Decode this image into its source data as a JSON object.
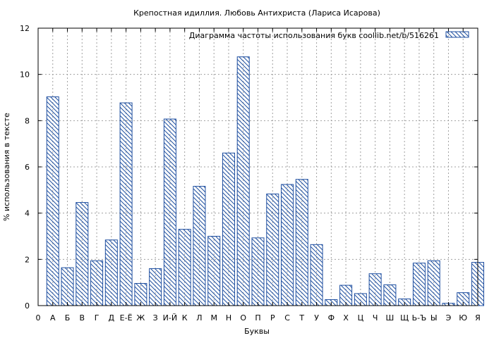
{
  "chart_data": {
    "type": "bar",
    "title": "Крепостная идиллия. Любовь Антихриста (Лариса Исарова)",
    "xlabel": "Буквы",
    "ylabel": "% использования в тексте",
    "ylim": [
      0,
      12
    ],
    "yticks": [
      "0",
      "2",
      "4",
      "6",
      "8",
      "10",
      "12"
    ],
    "x_axis_labels": [
      "0",
      "А",
      "Б",
      "В",
      "Г",
      "Д",
      "Е-Ё",
      "Ж",
      "З",
      "И-Й",
      "К",
      "Л",
      "М",
      "Н",
      "О",
      "П",
      "Р",
      "С",
      "Т",
      "У",
      "Ф",
      "Х",
      "Ц",
      "Ч",
      "Ш",
      "Щ",
      "Ь-Ъ",
      "Ы",
      "Э",
      "Ю",
      "Я"
    ],
    "grid": true,
    "legend_position": "top-right",
    "bar_pattern": "diagonal-hatch",
    "bar_color": "#1f4fa0",
    "series": [
      {
        "name": "Диаграмма частоты использования букв  coollib.net/b/516261",
        "categories": [
          "А",
          "Б",
          "В",
          "Г",
          "Д",
          "Е-Ё",
          "Ж",
          "З",
          "И-Й",
          "К",
          "Л",
          "М",
          "Н",
          "О",
          "П",
          "Р",
          "С",
          "Т",
          "У",
          "Ф",
          "Х",
          "Ц",
          "Ч",
          "Ш",
          "Щ",
          "Ь-Ъ",
          "Ы",
          "Э",
          "Ю",
          "Я"
        ],
        "values": [
          9.03,
          1.64,
          4.46,
          1.94,
          2.84,
          8.77,
          0.96,
          1.6,
          8.07,
          3.3,
          5.16,
          3.0,
          6.6,
          10.76,
          2.93,
          4.83,
          5.24,
          5.46,
          2.64,
          0.26,
          0.88,
          0.52,
          1.38,
          0.9,
          0.29,
          1.84,
          1.94,
          0.1,
          0.56,
          1.87
        ]
      }
    ]
  }
}
